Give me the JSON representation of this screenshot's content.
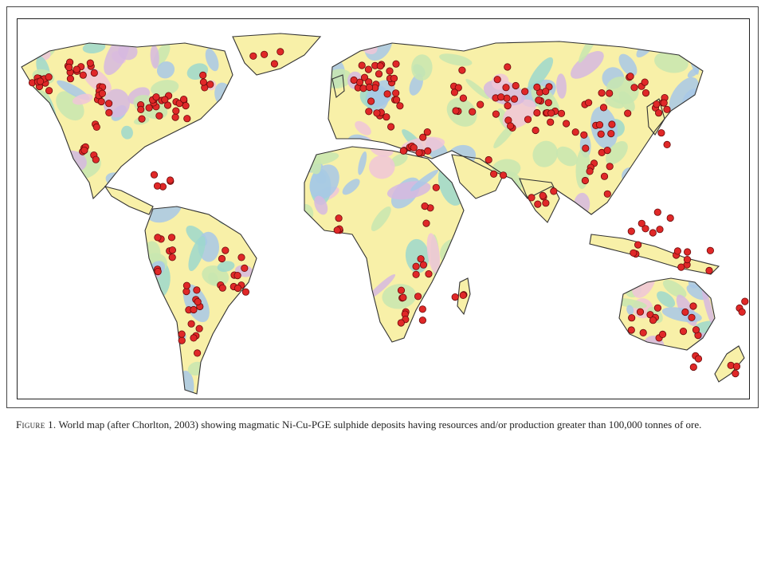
{
  "figure": {
    "caption_label": "Figure 1.",
    "caption_text": "World map (after Chorlton, 2003) showing magmatic Ni-Cu-PGE sulphide deposits having resources and/or production greater than 100,000 tonnes of ore."
  },
  "colors": {
    "land_base": "#f8f0a8",
    "coastline": "#333333",
    "geology_blue": "#a8c8e8",
    "geology_green": "#c8e6b0",
    "geology_purple": "#d6b8e0",
    "geology_teal": "#9ed8cc",
    "geology_pink": "#f0c6d8",
    "deposit_fill": "#e02828",
    "deposit_stroke": "#6a0a0a"
  }
}
